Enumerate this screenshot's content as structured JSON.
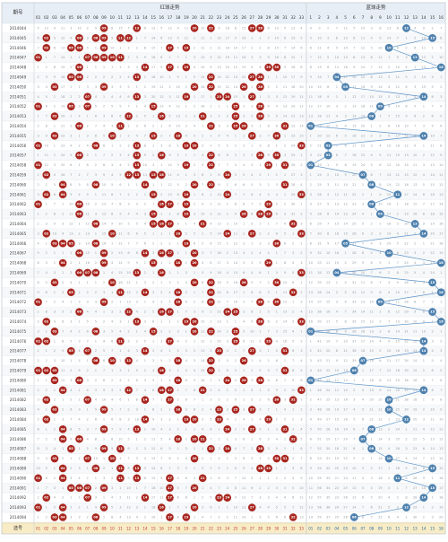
{
  "header": {
    "period_label": "期号",
    "red_section_title": "红球走势",
    "blue_section_title": "蓝球走势",
    "red_numbers": [
      "01",
      "02",
      "03",
      "04",
      "05",
      "06",
      "07",
      "08",
      "09",
      "10",
      "11",
      "12",
      "13",
      "14",
      "15",
      "16",
      "17",
      "18",
      "19",
      "20",
      "21",
      "22",
      "23",
      "24",
      "25",
      "26",
      "27",
      "28",
      "29",
      "30",
      "31",
      "32",
      "33"
    ],
    "blue_numbers": [
      "1",
      "2",
      "3",
      "4",
      "5",
      "6",
      "7",
      "8",
      "9",
      "10",
      "11",
      "12",
      "13",
      "14",
      "15",
      "16"
    ]
  },
  "footer": {
    "label": "选号",
    "red_numbers": [
      "01",
      "02",
      "03",
      "04",
      "05",
      "06",
      "07",
      "08",
      "09",
      "10",
      "11",
      "12",
      "13",
      "14",
      "15",
      "16",
      "17",
      "18",
      "19",
      "20",
      "21",
      "22",
      "23",
      "24",
      "25",
      "26",
      "27",
      "28",
      "29",
      "30",
      "31",
      "32",
      "33"
    ],
    "blue_numbers": [
      "01",
      "02",
      "03",
      "04",
      "05",
      "06",
      "07",
      "08",
      "09",
      "10",
      "11",
      "12",
      "13",
      "14",
      "15",
      "16"
    ]
  },
  "rows": [
    {
      "period": "2014044",
      "red": [
        9,
        13,
        20,
        22,
        27,
        28
      ],
      "blue": 12
    },
    {
      "period": "2014045",
      "red": [
        2,
        6,
        8,
        9,
        11,
        12
      ],
      "blue": 15
    },
    {
      "period": "2014046",
      "red": [
        2,
        5,
        6,
        9,
        17,
        19
      ],
      "blue": 10
    },
    {
      "period": "2014047",
      "red": [
        1,
        7,
        8,
        9,
        10,
        11
      ],
      "blue": 13
    },
    {
      "period": "2014048",
      "red": [
        6,
        14,
        17,
        19,
        29,
        30
      ],
      "blue": 16
    },
    {
      "period": "2014049",
      "red": [
        5,
        6,
        13,
        22,
        27,
        28
      ],
      "blue": 4
    },
    {
      "period": "2014050",
      "red": [
        3,
        9,
        20,
        22,
        26,
        28
      ],
      "blue": 5
    },
    {
      "period": "2014051",
      "red": [
        7,
        13,
        19,
        23,
        24,
        27
      ],
      "blue": 14
    },
    {
      "period": "2014052",
      "red": [
        1,
        5,
        7,
        15,
        25,
        28
      ],
      "blue": 9
    },
    {
      "period": "2014053",
      "red": [
        3,
        12,
        16,
        21,
        25,
        28
      ],
      "blue": 8
    },
    {
      "period": "2014054",
      "red": [
        6,
        11,
        22,
        25,
        26,
        31
      ],
      "blue": 1
    },
    {
      "period": "2014055",
      "red": [
        3,
        10,
        15,
        18,
        27,
        30
      ],
      "blue": 14
    },
    {
      "period": "2014056",
      "red": [
        1,
        8,
        13,
        19,
        20,
        33
      ],
      "blue": 3
    },
    {
      "period": "2014057",
      "red": [
        6,
        13,
        16,
        22,
        28,
        30
      ],
      "blue": 3
    },
    {
      "period": "2014058",
      "red": [
        1,
        13,
        19,
        22,
        29,
        31
      ],
      "blue": 1
    },
    {
      "period": "2014059",
      "red": [
        2,
        12,
        13,
        15,
        16,
        24
      ],
      "blue": 7
    },
    {
      "period": "2014060",
      "red": [
        4,
        8,
        14,
        20,
        22,
        31
      ],
      "blue": 8
    },
    {
      "period": "2014061",
      "red": [
        2,
        4,
        15,
        19,
        24,
        33
      ],
      "blue": 11
    },
    {
      "period": "2014062",
      "red": [
        1,
        6,
        16,
        17,
        19,
        29
      ],
      "blue": 8
    },
    {
      "period": "2014063",
      "red": [
        6,
        15,
        19,
        26,
        28,
        29
      ],
      "blue": 9
    },
    {
      "period": "2014064",
      "red": [
        8,
        15,
        16,
        17,
        21,
        32
      ],
      "blue": 13
    },
    {
      "period": "2014065",
      "red": [
        2,
        10,
        18,
        24,
        27,
        33
      ],
      "blue": 14
    },
    {
      "period": "2014066",
      "red": [
        3,
        4,
        5,
        8,
        19,
        30
      ],
      "blue": 5
    },
    {
      "period": "2014067",
      "red": [
        6,
        9,
        14,
        16,
        17,
        20
      ],
      "blue": 10
    },
    {
      "period": "2014068",
      "red": [
        4,
        9,
        15,
        18,
        20,
        29
      ],
      "blue": 16
    },
    {
      "period": "2014069",
      "red": [
        6,
        7,
        8,
        13,
        16,
        33
      ],
      "blue": 4
    },
    {
      "period": "2014070",
      "red": [
        3,
        10,
        20,
        22,
        26,
        30
      ],
      "blue": 15
    },
    {
      "period": "2014071",
      "red": [
        5,
        11,
        14,
        18,
        22,
        32
      ],
      "blue": 16
    },
    {
      "period": "2014072",
      "red": [
        1,
        9,
        18,
        22,
        28,
        30
      ],
      "blue": 9
    },
    {
      "period": "2014073",
      "red": [
        6,
        12,
        16,
        17,
        24,
        25
      ],
      "blue": 15
    },
    {
      "period": "2014074",
      "red": [
        2,
        13,
        19,
        20,
        28,
        33
      ],
      "blue": 16
    },
    {
      "period": "2014075",
      "red": [
        3,
        8,
        15,
        20,
        22,
        25
      ],
      "blue": 1
    },
    {
      "period": "2014076",
      "red": [
        1,
        2,
        11,
        17,
        25,
        29
      ],
      "blue": 14
    },
    {
      "period": "2014077",
      "red": [
        5,
        7,
        14,
        23,
        27,
        31
      ],
      "blue": 14
    },
    {
      "period": "2014078",
      "red": [
        8,
        10,
        12,
        18,
        22,
        26
      ],
      "blue": 7
    },
    {
      "period": "2014079",
      "red": [
        1,
        2,
        3,
        16,
        22,
        31
      ],
      "blue": 6
    },
    {
      "period": "2014080",
      "red": [
        3,
        6,
        18,
        24,
        26,
        28
      ],
      "blue": 1
    },
    {
      "period": "2014081",
      "red": [
        4,
        12,
        16,
        17,
        21,
        33
      ],
      "blue": 14
    },
    {
      "period": "2014082",
      "red": [
        2,
        7,
        14,
        17,
        30,
        32
      ],
      "blue": 10
    },
    {
      "period": "2014083",
      "red": [
        3,
        9,
        18,
        23,
        25,
        27
      ],
      "blue": 10
    },
    {
      "period": "2014084",
      "red": [
        2,
        14,
        19,
        20,
        23,
        29
      ],
      "blue": 12
    },
    {
      "period": "2014085",
      "red": [
        4,
        9,
        13,
        24,
        27,
        31
      ],
      "blue": 8
    },
    {
      "period": "2014086",
      "red": [
        4,
        6,
        18,
        20,
        21,
        32
      ],
      "blue": 7
    },
    {
      "period": "2014087",
      "red": [
        5,
        9,
        11,
        22,
        24,
        28
      ],
      "blue": 8
    },
    {
      "period": "2014088",
      "red": [
        3,
        7,
        10,
        20,
        30,
        31
      ],
      "blue": 10
    },
    {
      "period": "2014089",
      "red": [
        4,
        8,
        11,
        13,
        28,
        29
      ],
      "blue": 15
    },
    {
      "period": "2014090",
      "red": [
        1,
        4,
        11,
        13,
        17,
        21
      ],
      "blue": 11
    },
    {
      "period": "2014091",
      "red": [
        5,
        6,
        7,
        9,
        17,
        20
      ],
      "blue": 15
    },
    {
      "period": "2014092",
      "red": [
        2,
        7,
        14,
        17,
        23,
        24
      ],
      "blue": 14
    },
    {
      "period": "2014093",
      "red": [
        1,
        4,
        9,
        16,
        20,
        27
      ],
      "blue": 12
    },
    {
      "period": "2014094",
      "red": [
        3,
        4,
        8,
        17,
        19,
        32
      ],
      "blue": 6
    }
  ],
  "colors": {
    "red_ball": "#a8261f",
    "blue_ball": "#4e81ae",
    "blue_line": "#5d93c6",
    "header_bg": "#e8eef6",
    "footer_bg": "#f7ecc6",
    "miss_text": "#9aa0a6",
    "grid": "#e3e6ea"
  }
}
